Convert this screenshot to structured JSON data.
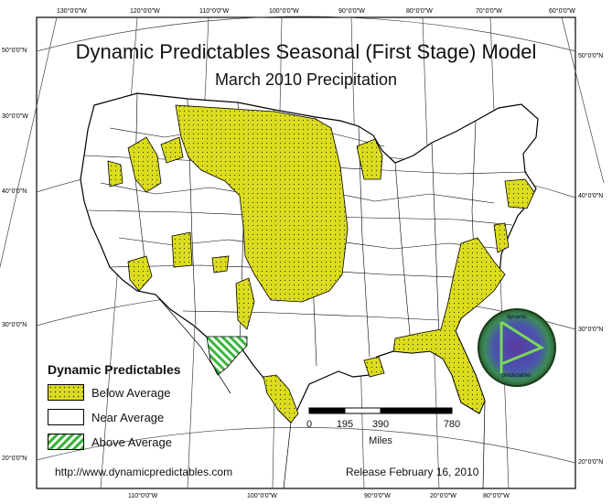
{
  "title": "Dynamic Predictables Seasonal (First Stage) Model",
  "subtitle": "March 2010 Precipitation",
  "graticule": {
    "top": [
      "130°0'0\"W",
      "120°0'0\"W",
      "110°0'0\"W",
      "100°0'0\"W",
      "90°0'0\"W",
      "80°0'0\"W",
      "70°0'0\"W",
      "60°0'0\"W"
    ],
    "bottom": [
      "110°0'0\"W",
      "100°0'0\"W",
      "90°0'0\"W",
      "20°0'0\"W",
      "80°0'0\"W"
    ],
    "left": [
      "50°0'0\"N",
      "30°0'0\"W",
      "40°0'0\"N",
      "30°0'0\"N",
      "20°0'0\"N"
    ],
    "right": [
      "50°0'0\"N",
      "40°0'0\"N",
      "30°0'0\"N",
      "20°0'0\"N"
    ]
  },
  "legend": {
    "title": "Dynamic Predictables",
    "items": [
      {
        "label": "Below Average",
        "color": "#dcdc1e"
      },
      {
        "label": "Near Average",
        "color": "#ffffff"
      },
      {
        "label": "Above Average",
        "color": "#3cb43c"
      }
    ]
  },
  "scale_bar": {
    "ticks": [
      "0",
      "195",
      "390",
      "780"
    ],
    "unit": "Miles"
  },
  "website": "http://www.dynamicpredictables.com",
  "release": "Release February 16, 2010",
  "logo": {
    "text_top": "dynamic",
    "text_bottom": "predictables"
  },
  "colors": {
    "below": "#dcdc1e",
    "above": "#3cb43c",
    "ocean": "#ffffff"
  }
}
